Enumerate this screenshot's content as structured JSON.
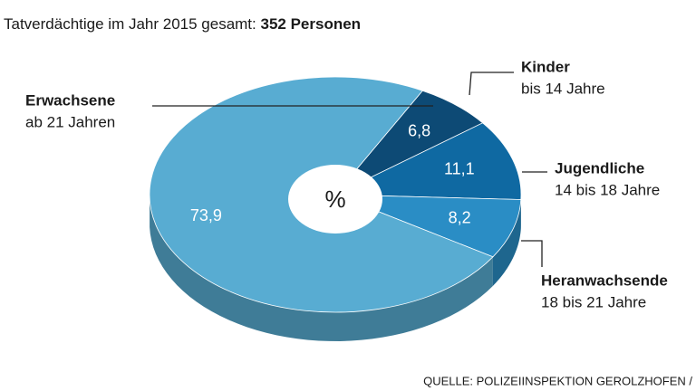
{
  "chart_data": {
    "type": "pie",
    "subtitle": "Tatverdächtige im Jahr 2015 gesamt:",
    "subtitle_bold": "352 Personen",
    "categories": [
      "Kinder",
      "Jugendliche",
      "Heranwachsende",
      "Erwachsene"
    ],
    "category_sublabels": [
      "bis 14 Jahre",
      "14 bis 18 Jahre",
      "18 bis 21 Jahre",
      "ab 21 Jahren"
    ],
    "values": [
      6.8,
      11.1,
      8.2,
      73.9
    ],
    "value_labels": [
      "6,8",
      "11,1",
      "8,2",
      "73,9"
    ],
    "colors": [
      "#0d4a75",
      "#0f69a2",
      "#2a8dc5",
      "#58acd2"
    ],
    "center_label": "%",
    "source": "QUELLE: POLIZEIINSPEKTION GEROLZHOFEN /"
  }
}
